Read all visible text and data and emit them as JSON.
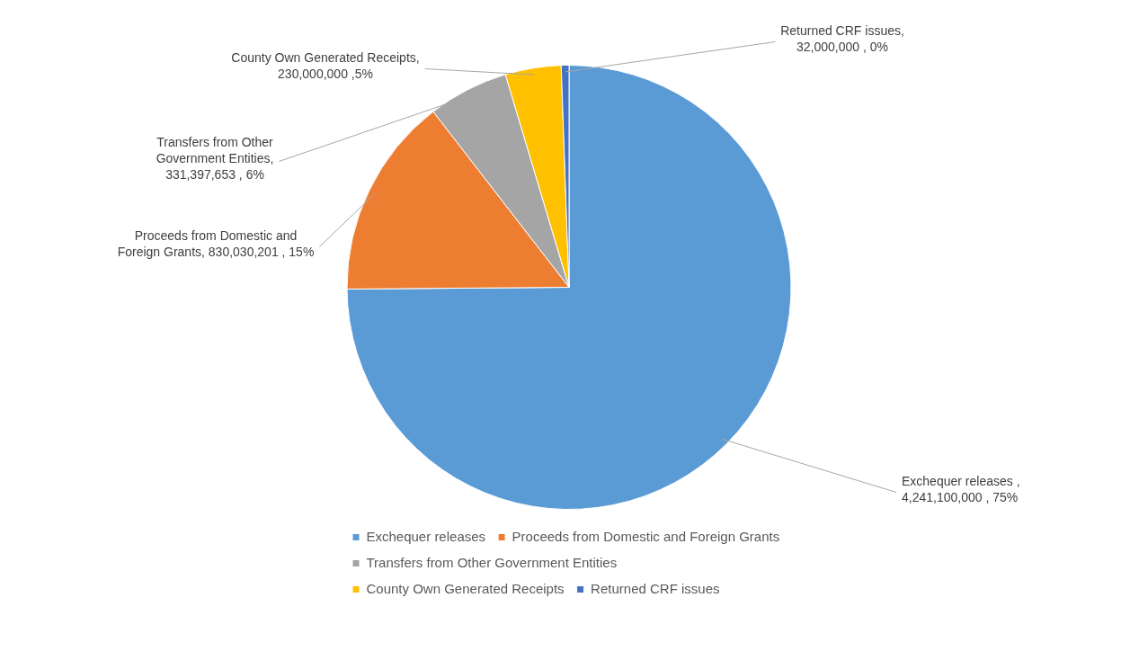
{
  "chart_data": {
    "type": "pie",
    "categories": [
      "Exchequer releases",
      "Proceeds from Domestic and Foreign Grants",
      "Transfers from Other Government Entities",
      "County Own Generated Receipts",
      "Returned CRF issues"
    ],
    "values": [
      4241100000,
      830030201,
      331397653,
      230000000,
      32000000
    ],
    "colors": [
      "#5b9bd5",
      "#ed7d31",
      "#a5a5a5",
      "#ffc000",
      "#4472c4"
    ],
    "value_labels": [
      "Exchequer releases , 4,241,100,000 , 75%",
      "Proceeds from Domestic and Foreign Grants, 830,030,201 , 15%",
      "Transfers from Other Government Entities, 331,397,653 , 6%",
      "County Own Generated Receipts, 230,000,000 ,5%",
      "Returned CRF issues, 32,000,000 , 0%"
    ],
    "legend": "bottom"
  }
}
